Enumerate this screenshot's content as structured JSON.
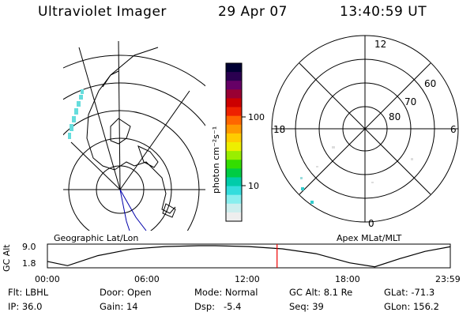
{
  "header": {
    "title": "Ultraviolet Imager",
    "date": "29 Apr 07",
    "time": "13:40:59 UT"
  },
  "panels": {
    "left_label": "Geographic Lat/Lon",
    "right_label": "Apex MLat/MLT"
  },
  "colorbar": {
    "unit_label": "photon cm⁻²s⁻¹",
    "ticks": [
      "100",
      "10"
    ],
    "colors": [
      "#000033",
      "#2a0050",
      "#660066",
      "#990033",
      "#cc0000",
      "#ee2200",
      "#ff6600",
      "#ff9900",
      "#ffcc00",
      "#eeee00",
      "#99ee00",
      "#33dd00",
      "#00cc44",
      "#00ccaa",
      "#33dddd",
      "#88eeee",
      "#cceeee",
      "#eeeeee"
    ]
  },
  "polar": {
    "mlt_labels": {
      "top": "12",
      "bottom": "0",
      "left": "18",
      "right": "6"
    },
    "lat_labels": [
      "60",
      "70",
      "80"
    ]
  },
  "altitude_plot": {
    "y_label": "GC Alt",
    "y_ticks": [
      "9.0",
      "1.8"
    ],
    "x_ticks": [
      "00:00",
      "06:00",
      "12:00",
      "18:00",
      "23:59"
    ],
    "marker_time_hours": 13.68,
    "curve_hours": [
      0,
      1.2,
      3,
      5,
      7,
      9,
      10,
      12,
      14,
      16,
      18,
      19.5,
      21,
      22.5,
      23.98
    ],
    "curve_alt_re": [
      3.5,
      2.0,
      5.5,
      7.8,
      8.7,
      9.0,
      9.0,
      8.7,
      7.9,
      6.2,
      3.0,
      1.6,
      4.5,
      7.0,
      8.6
    ],
    "y_range": [
      1.8,
      9.0
    ]
  },
  "footer": {
    "filter": "Flt: LBHL",
    "ip": "IP: 36.0",
    "door": "Door: Open",
    "gain": "Gain: 14",
    "mode": "Mode: Normal",
    "dsp": "Dsp:   -5.4",
    "gc_alt": "GC Alt: 8.1 Re",
    "seq": "Seq: 39",
    "glat": "GLat: -71.3",
    "glon": "GLon: 156.2"
  }
}
